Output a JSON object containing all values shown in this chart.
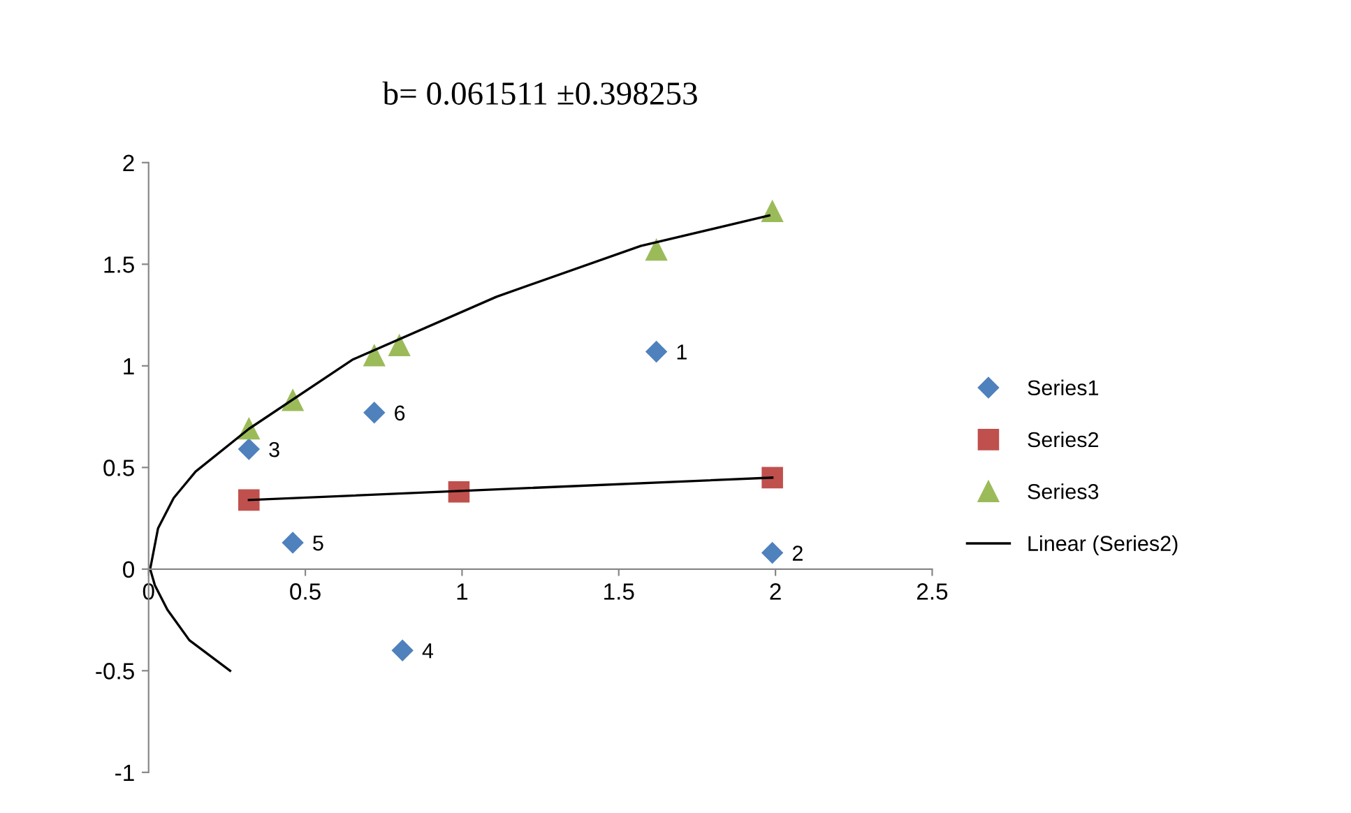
{
  "chart_data": {
    "type": "scatter",
    "title": "b= 0.061511 ±0.398253",
    "xlim": [
      0,
      2.5
    ],
    "xticks": [
      0,
      0.5,
      1,
      1.5,
      2,
      2.5
    ],
    "ylim": [
      -1,
      2
    ],
    "yticks": [
      -1,
      -0.5,
      0,
      0.5,
      1,
      1.5,
      2
    ],
    "grid": false,
    "legend": "right",
    "annotations": [
      {
        "text": "1",
        "x": 1.62,
        "y": 1.07
      },
      {
        "text": "2",
        "x": 1.99,
        "y": 0.08
      },
      {
        "text": "3",
        "x": 0.32,
        "y": 0.59
      },
      {
        "text": "4",
        "x": 0.81,
        "y": -0.4
      },
      {
        "text": "5",
        "x": 0.46,
        "y": 0.13
      },
      {
        "text": "6",
        "x": 0.72,
        "y": 0.77
      }
    ],
    "series": [
      {
        "name": "Series1",
        "marker": "diamond",
        "color": "#4f81bd",
        "x": [
          1.62,
          1.99,
          0.32,
          0.81,
          0.46,
          0.72
        ],
        "values": [
          1.07,
          0.08,
          0.59,
          -0.4,
          0.13,
          0.77
        ]
      },
      {
        "name": "Series2",
        "marker": "square",
        "color": "#c0504d",
        "x": [
          0.32,
          0.99,
          1.99
        ],
        "values": [
          0.34,
          0.38,
          0.45
        ]
      },
      {
        "name": "Series3",
        "marker": "triangle",
        "color": "#9bbb59",
        "x": [
          0.32,
          0.46,
          0.72,
          0.8,
          1.62,
          1.99
        ],
        "values": [
          0.69,
          0.83,
          1.05,
          1.1,
          1.57,
          1.76
        ]
      },
      {
        "name": "Linear (Series2)",
        "type": "line",
        "marker": "none",
        "color": "#000000",
        "x": [
          0.32,
          1.99
        ],
        "values": [
          0.34,
          0.45
        ]
      },
      {
        "type": "line",
        "marker": "none",
        "color": "#000000",
        "x": [
          0.26,
          0.13,
          0.06,
          0.02,
          0.005,
          0.03,
          0.08,
          0.15,
          0.32,
          0.65,
          1.11,
          1.57,
          1.98
        ],
        "values": [
          -0.5,
          -0.35,
          -0.2,
          -0.08,
          0,
          0.2,
          0.35,
          0.48,
          0.69,
          1.03,
          1.34,
          1.59,
          1.74
        ]
      }
    ]
  }
}
